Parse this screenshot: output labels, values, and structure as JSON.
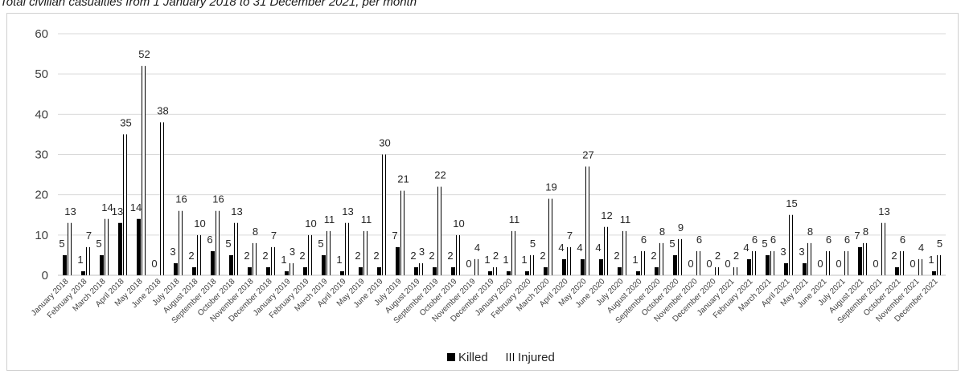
{
  "subtitle": "Total civilian casualties from 1 January 2018 to 31 December 2021, per month",
  "chart_data": {
    "type": "bar",
    "title": "",
    "xlabel": "",
    "ylabel": "",
    "ylim": [
      0,
      60
    ],
    "yticks": [
      0,
      10,
      20,
      30,
      40,
      50,
      60
    ],
    "grid": true,
    "legend": "bottom-center",
    "categories": [
      "January 2018",
      "February 2018",
      "March 2018",
      "April 2018",
      "May 2018",
      "June 2018",
      "July 2018",
      "August 2018",
      "September 2018",
      "October 2018",
      "November 2018",
      "December 2018",
      "January 2019",
      "February 2019",
      "March 2019",
      "April 2019",
      "May 2019",
      "June 2019",
      "July 2019",
      "August 2019",
      "September 2019",
      "October 2019",
      "November 2019",
      "December 2019",
      "January 2020",
      "February 2020",
      "March 2020",
      "April 2020",
      "May 2020",
      "June 2020",
      "July 2020",
      "August 2020",
      "September 2020",
      "October 2020",
      "November 2020",
      "December 2020",
      "January 2021",
      "February 2021",
      "March 2021",
      "April 2021",
      "May 2021",
      "June 2021",
      "July 2021",
      "August 2021",
      "September 2021",
      "October 2021",
      "November 2021",
      "December 2021"
    ],
    "series": [
      {
        "name": "Killed",
        "color": "#000000",
        "values": [
          5,
          1,
          5,
          13,
          14,
          0,
          3,
          2,
          6,
          5,
          2,
          2,
          1,
          2,
          5,
          1,
          2,
          2,
          7,
          2,
          2,
          2,
          0,
          1,
          1,
          1,
          2,
          4,
          4,
          4,
          2,
          1,
          2,
          5,
          0,
          0,
          0,
          4,
          5,
          3,
          3,
          0,
          0,
          7,
          0,
          2,
          0,
          1
        ]
      },
      {
        "name": "Injured",
        "color": "#ffffff",
        "values": [
          13,
          7,
          14,
          35,
          52,
          38,
          16,
          10,
          16,
          13,
          8,
          7,
          3,
          10,
          11,
          13,
          11,
          30,
          21,
          3,
          22,
          10,
          4,
          2,
          11,
          5,
          19,
          7,
          27,
          12,
          11,
          6,
          8,
          9,
          6,
          2,
          2,
          6,
          6,
          15,
          8,
          6,
          6,
          8,
          13,
          6,
          4,
          5
        ]
      }
    ]
  }
}
